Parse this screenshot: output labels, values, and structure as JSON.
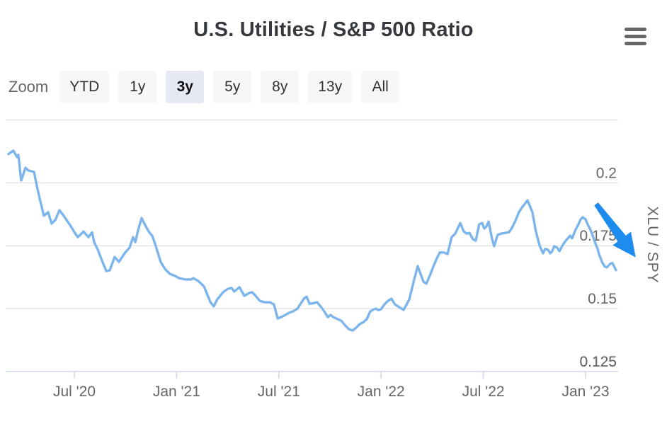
{
  "header": {
    "title": "U.S. Utilities / S&P 500 Ratio"
  },
  "range_selector": {
    "label": "Zoom",
    "buttons": [
      {
        "label": "YTD",
        "selected": false
      },
      {
        "label": "1y",
        "selected": false
      },
      {
        "label": "3y",
        "selected": true
      },
      {
        "label": "5y",
        "selected": false
      },
      {
        "label": "8y",
        "selected": false
      },
      {
        "label": "13y",
        "selected": false
      },
      {
        "label": "All",
        "selected": false
      }
    ]
  },
  "colors": {
    "series_line": "#7cb5ec",
    "grid_line": "#e6e6e6",
    "axis_line": "#ccd6eb",
    "axis_label": "#666666",
    "arrow": "#1e8bee"
  },
  "chart_data": {
    "type": "line",
    "title": "U.S. Utilities / S&P 500 Ratio",
    "ylabel": "XLU / SPY",
    "xlabel": "",
    "grid": true,
    "legend": "none",
    "xlim": [
      2020.164,
      2023.159
    ],
    "ylim": [
      0.125,
      0.2325
    ],
    "y_ticks": [
      {
        "value": 0.225,
        "label": ""
      },
      {
        "value": 0.2,
        "label": "0.2"
      },
      {
        "value": 0.175,
        "label": "0.175"
      },
      {
        "value": 0.15,
        "label": "0.15"
      },
      {
        "value": 0.125,
        "label": "0.125"
      }
    ],
    "x_ticks": [
      {
        "t": 2020.5,
        "label": "Jul '20"
      },
      {
        "t": 2021.0,
        "label": "Jan '21"
      },
      {
        "t": 2021.5,
        "label": "Jul '21"
      },
      {
        "t": 2022.0,
        "label": "Jan '22"
      },
      {
        "t": 2022.5,
        "label": "Jul '22"
      },
      {
        "t": 2023.0,
        "label": "Jan '23"
      }
    ],
    "series": [
      {
        "name": "XLU / SPY",
        "color": "#7cb5ec",
        "points": [
          [
            2020.178,
            0.2114
          ],
          [
            2020.202,
            0.2128
          ],
          [
            2020.22,
            0.2102
          ],
          [
            2020.226,
            0.2111
          ],
          [
            2020.24,
            0.2009
          ],
          [
            2020.261,
            0.206
          ],
          [
            2020.275,
            0.2049
          ],
          [
            2020.303,
            0.2043
          ],
          [
            2020.313,
            0.2001
          ],
          [
            2020.33,
            0.1939
          ],
          [
            2020.351,
            0.1869
          ],
          [
            2020.372,
            0.1883
          ],
          [
            2020.389,
            0.1838
          ],
          [
            2020.407,
            0.1852
          ],
          [
            2020.427,
            0.1891
          ],
          [
            2020.448,
            0.1869
          ],
          [
            2020.483,
            0.1827
          ],
          [
            2020.5,
            0.1804
          ],
          [
            2020.517,
            0.1784
          ],
          [
            2020.545,
            0.1806
          ],
          [
            2020.569,
            0.1784
          ],
          [
            2020.587,
            0.1803
          ],
          [
            2020.597,
            0.1764
          ],
          [
            2020.614,
            0.1736
          ],
          [
            2020.632,
            0.1697
          ],
          [
            2020.656,
            0.1649
          ],
          [
            2020.673,
            0.1652
          ],
          [
            2020.697,
            0.1705
          ],
          [
            2020.718,
            0.1686
          ],
          [
            2020.749,
            0.1723
          ],
          [
            2020.77,
            0.1742
          ],
          [
            2020.787,
            0.1784
          ],
          [
            2020.798,
            0.1764
          ],
          [
            2020.812,
            0.1812
          ],
          [
            2020.829,
            0.186
          ],
          [
            2020.846,
            0.1832
          ],
          [
            2020.864,
            0.1806
          ],
          [
            2020.881,
            0.1789
          ],
          [
            2020.898,
            0.175
          ],
          [
            2020.922,
            0.1686
          ],
          [
            2020.943,
            0.1658
          ],
          [
            2020.967,
            0.1638
          ],
          [
            2020.992,
            0.163
          ],
          [
            2021.012,
            0.1621
          ],
          [
            2021.044,
            0.1616
          ],
          [
            2021.071,
            0.1616
          ],
          [
            2021.082,
            0.1621
          ],
          [
            2021.106,
            0.161
          ],
          [
            2021.134,
            0.1588
          ],
          [
            2021.165,
            0.1526
          ],
          [
            2021.182,
            0.1509
          ],
          [
            2021.199,
            0.1537
          ],
          [
            2021.227,
            0.1565
          ],
          [
            2021.251,
            0.1579
          ],
          [
            2021.269,
            0.1582
          ],
          [
            2021.282,
            0.1568
          ],
          [
            2021.307,
            0.1585
          ],
          [
            2021.331,
            0.1551
          ],
          [
            2021.355,
            0.1562
          ],
          [
            2021.369,
            0.1565
          ],
          [
            2021.383,
            0.1554
          ],
          [
            2021.407,
            0.1531
          ],
          [
            2021.431,
            0.1525
          ],
          [
            2021.456,
            0.1525
          ],
          [
            2021.476,
            0.1517
          ],
          [
            2021.494,
            0.1461
          ],
          [
            2021.511,
            0.1466
          ],
          [
            2021.532,
            0.1475
          ],
          [
            2021.549,
            0.1483
          ],
          [
            2021.57,
            0.1489
          ],
          [
            2021.591,
            0.15
          ],
          [
            2021.625,
            0.1542
          ],
          [
            2021.636,
            0.1547
          ],
          [
            2021.65,
            0.1519
          ],
          [
            2021.67,
            0.1522
          ],
          [
            2021.688,
            0.1525
          ],
          [
            2021.705,
            0.1508
          ],
          [
            2021.722,
            0.1489
          ],
          [
            2021.74,
            0.1466
          ],
          [
            2021.753,
            0.1475
          ],
          [
            2021.767,
            0.1466
          ],
          [
            2021.788,
            0.1458
          ],
          [
            2021.805,
            0.1452
          ],
          [
            2021.826,
            0.1432
          ],
          [
            2021.843,
            0.1418
          ],
          [
            2021.861,
            0.1413
          ],
          [
            2021.878,
            0.1424
          ],
          [
            2021.895,
            0.1438
          ],
          [
            2021.913,
            0.1446
          ],
          [
            2021.93,
            0.1458
          ],
          [
            2021.947,
            0.1489
          ],
          [
            2021.964,
            0.1497
          ],
          [
            2021.975,
            0.15
          ],
          [
            2021.985,
            0.1494
          ],
          [
            2021.999,
            0.1497
          ],
          [
            2022.017,
            0.1517
          ],
          [
            2022.034,
            0.1531
          ],
          [
            2022.051,
            0.1539
          ],
          [
            2022.068,
            0.1517
          ],
          [
            2022.093,
            0.1503
          ],
          [
            2022.11,
            0.1495
          ],
          [
            2022.138,
            0.1537
          ],
          [
            2022.162,
            0.1616
          ],
          [
            2022.179,
            0.1669
          ],
          [
            2022.207,
            0.1607
          ],
          [
            2022.221,
            0.1599
          ],
          [
            2022.238,
            0.163
          ],
          [
            2022.255,
            0.1666
          ],
          [
            2022.273,
            0.17
          ],
          [
            2022.287,
            0.1723
          ],
          [
            2022.307,
            0.1723
          ],
          [
            2022.325,
            0.1717
          ],
          [
            2022.345,
            0.1784
          ],
          [
            2022.363,
            0.1798
          ],
          [
            2022.387,
            0.184
          ],
          [
            2022.404,
            0.1807
          ],
          [
            2022.418,
            0.1798
          ],
          [
            2022.432,
            0.1801
          ],
          [
            2022.449,
            0.1776
          ],
          [
            2022.463,
            0.177
          ],
          [
            2022.48,
            0.1835
          ],
          [
            2022.494,
            0.184
          ],
          [
            2022.505,
            0.1818
          ],
          [
            2022.515,
            0.1826
          ],
          [
            2022.526,
            0.1846
          ],
          [
            2022.543,
            0.1776
          ],
          [
            2022.553,
            0.1748
          ],
          [
            2022.57,
            0.1793
          ],
          [
            2022.588,
            0.1798
          ],
          [
            2022.609,
            0.1801
          ],
          [
            2022.626,
            0.1804
          ],
          [
            2022.64,
            0.1821
          ],
          [
            2022.657,
            0.1849
          ],
          [
            2022.674,
            0.1883
          ],
          [
            2022.692,
            0.1905
          ],
          [
            2022.716,
            0.193
          ],
          [
            2022.74,
            0.1883
          ],
          [
            2022.757,
            0.1807
          ],
          [
            2022.775,
            0.1751
          ],
          [
            2022.792,
            0.172
          ],
          [
            2022.802,
            0.1737
          ],
          [
            2022.816,
            0.1734
          ],
          [
            2022.827,
            0.172
          ],
          [
            2022.837,
            0.1728
          ],
          [
            2022.847,
            0.1748
          ],
          [
            2022.861,
            0.1742
          ],
          [
            2022.872,
            0.1728
          ],
          [
            2022.889,
            0.1753
          ],
          [
            2022.903,
            0.177
          ],
          [
            2022.913,
            0.1779
          ],
          [
            2022.924,
            0.179
          ],
          [
            2022.934,
            0.1779
          ],
          [
            2022.951,
            0.1813
          ],
          [
            2022.965,
            0.1835
          ],
          [
            2022.976,
            0.1855
          ],
          [
            2022.986,
            0.1863
          ],
          [
            2023.0,
            0.1855
          ],
          [
            2023.01,
            0.1835
          ],
          [
            2023.024,
            0.1813
          ],
          [
            2023.035,
            0.179
          ],
          [
            2023.045,
            0.1765
          ],
          [
            2023.059,
            0.1737
          ],
          [
            2023.069,
            0.1709
          ],
          [
            2023.08,
            0.1686
          ],
          [
            2023.094,
            0.1667
          ],
          [
            2023.104,
            0.1664
          ],
          [
            2023.121,
            0.1678
          ],
          [
            2023.131,
            0.1681
          ],
          [
            2023.149,
            0.1653
          ]
        ]
      }
    ],
    "annotation": {
      "type": "arrow",
      "color": "#1e8bee",
      "from": {
        "t": 2023.052,
        "v": 0.1916
      },
      "to": {
        "t": 2023.245,
        "v": 0.1704
      }
    }
  }
}
